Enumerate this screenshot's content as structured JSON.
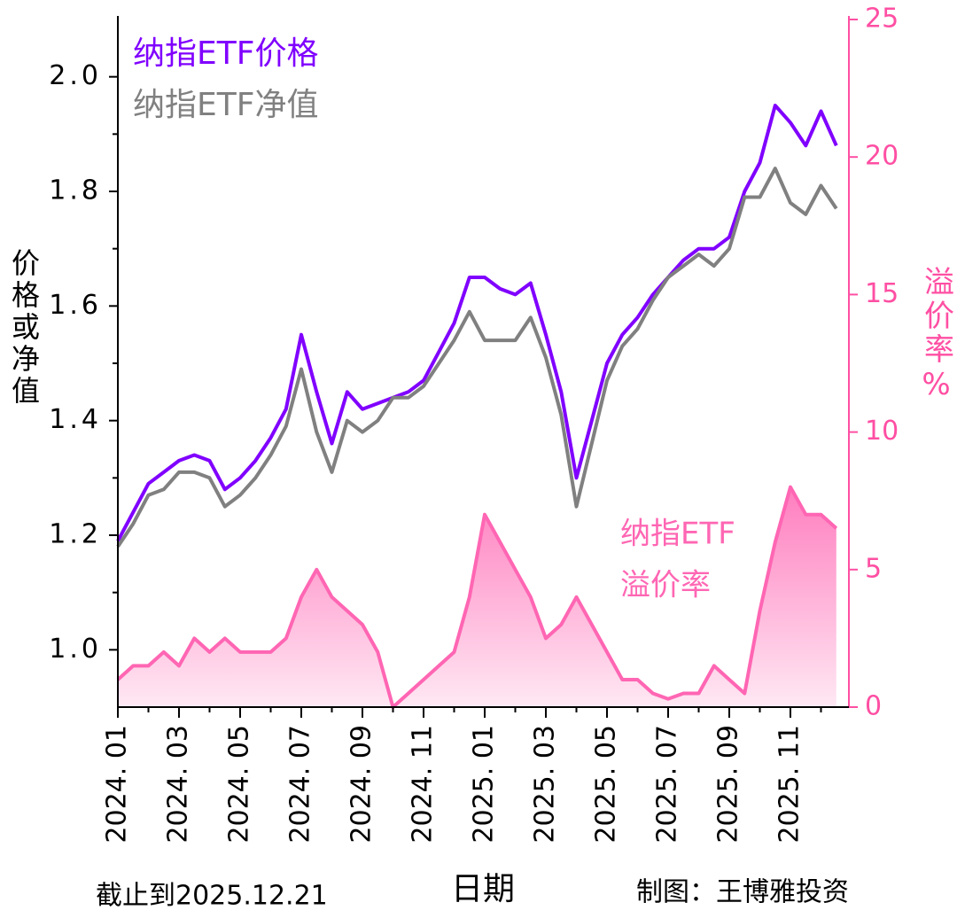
{
  "chart_data": {
    "type": "line",
    "legend": [
      "纳指ETF价格",
      "纳指ETF净值"
    ],
    "xlabel": "日期",
    "ylabel": "价格或净值",
    "y2label": "溢价率%",
    "annotation": [
      "纳指ETF",
      "溢价率"
    ],
    "footer_left": "截止到2025.12.21",
    "footer_right": "制图：王博雅投资",
    "x": [
      "2024.01",
      "2024.01",
      "2024.02",
      "2024.02",
      "2024.03",
      "2024.03",
      "2024.04",
      "2024.04",
      "2024.05",
      "2024.05",
      "2024.06",
      "2024.06",
      "2024.07",
      "2024.07",
      "2024.08",
      "2024.08",
      "2024.09",
      "2024.09",
      "2024.10",
      "2024.10",
      "2024.11",
      "2024.11",
      "2024.12",
      "2024.12",
      "2025.01",
      "2025.01",
      "2025.02",
      "2025.02",
      "2025.03",
      "2025.03",
      "2025.04",
      "2025.04",
      "2025.05",
      "2025.05",
      "2025.06",
      "2025.06",
      "2025.07",
      "2025.07",
      "2025.08",
      "2025.08",
      "2025.09",
      "2025.09",
      "2025.10",
      "2025.10",
      "2025.11",
      "2025.11",
      "2025.12",
      "2025.12"
    ],
    "xticks": [
      {
        "value": "2024.01",
        "label": "2024. 01"
      },
      {
        "value": "2024.03",
        "label": "2024. 03"
      },
      {
        "value": "2024.05",
        "label": "2024. 05"
      },
      {
        "value": "2024.07",
        "label": "2024. 07"
      },
      {
        "value": "2024.09",
        "label": "2024. 09"
      },
      {
        "value": "2024.11",
        "label": "2024. 11"
      },
      {
        "value": "2025.01",
        "label": "2025. 01"
      },
      {
        "value": "2025.03",
        "label": "2025. 03"
      },
      {
        "value": "2025.05",
        "label": "2025. 05"
      },
      {
        "value": "2025.07",
        "label": "2025. 07"
      },
      {
        "value": "2025.09",
        "label": "2025. 09"
      },
      {
        "value": "2025.11",
        "label": "2025. 11"
      }
    ],
    "ylim": [
      0.9,
      2.1
    ],
    "yticks": [
      {
        "value": 1,
        "label": "1.0"
      },
      1.2,
      1.4,
      1.6,
      1.8,
      {
        "value": 2,
        "label": "2.0"
      }
    ],
    "y2lim": [
      0,
      25
    ],
    "y2ticks": [
      0,
      5,
      10,
      15,
      20,
      25
    ],
    "series": [
      {
        "name": "纳指ETF价格",
        "color": "#8000ff",
        "values": [
          1.19,
          1.24,
          1.29,
          1.31,
          1.33,
          1.34,
          1.33,
          1.28,
          1.3,
          1.33,
          1.37,
          1.42,
          1.55,
          1.45,
          1.36,
          1.45,
          1.42,
          1.43,
          1.44,
          1.45,
          1.47,
          1.52,
          1.57,
          1.65,
          1.65,
          1.63,
          1.62,
          1.64,
          1.55,
          1.45,
          1.3,
          1.4,
          1.5,
          1.55,
          1.58,
          1.62,
          1.65,
          1.68,
          1.7,
          1.7,
          1.72,
          1.8,
          1.85,
          1.95,
          1.92,
          1.88,
          1.94,
          1.88
        ]
      },
      {
        "name": "纳指ETF净值",
        "color": "#808080",
        "values": [
          1.18,
          1.22,
          1.27,
          1.28,
          1.31,
          1.31,
          1.3,
          1.25,
          1.27,
          1.3,
          1.34,
          1.39,
          1.49,
          1.38,
          1.31,
          1.4,
          1.38,
          1.4,
          1.44,
          1.44,
          1.46,
          1.5,
          1.54,
          1.59,
          1.54,
          1.54,
          1.54,
          1.58,
          1.51,
          1.41,
          1.25,
          1.36,
          1.47,
          1.53,
          1.56,
          1.61,
          1.65,
          1.67,
          1.69,
          1.67,
          1.7,
          1.79,
          1.79,
          1.84,
          1.78,
          1.76,
          1.81,
          1.77
        ]
      },
      {
        "name": "纳指ETF溢价率",
        "color": "#ff66b3",
        "axis": "y2",
        "values": [
          1,
          1.5,
          1.5,
          2,
          1.5,
          2.5,
          2,
          2.5,
          2,
          2,
          2,
          2.5,
          4,
          5,
          4,
          3.5,
          3,
          2,
          0,
          0.5,
          1,
          1.5,
          2,
          4,
          7,
          6,
          5,
          4,
          2.5,
          3,
          4,
          3,
          2,
          1,
          1,
          0.5,
          0.3,
          0.5,
          0.5,
          1.5,
          1,
          0.5,
          3.5,
          6,
          8,
          7,
          7,
          6.5
        ]
      }
    ]
  }
}
